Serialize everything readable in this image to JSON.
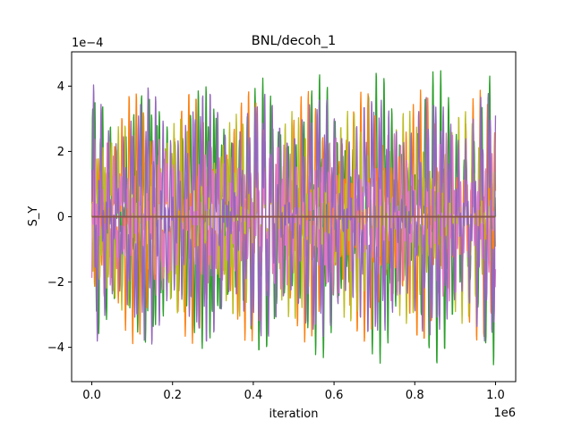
{
  "chart_data": {
    "type": "line",
    "title": "BNL/decoh_1",
    "xlabel": "iteration",
    "ylabel": "S_Y",
    "x_offset_label": "1e6",
    "y_offset_label": "1e−4",
    "xlim": [
      -0.05,
      1.05
    ],
    "ylim": [
      -5.05,
      5.05
    ],
    "x_ticks": [
      0.0,
      0.2,
      0.4,
      0.6,
      0.8,
      1.0
    ],
    "x_tick_labels": [
      "0.0",
      "0.2",
      "0.4",
      "0.6",
      "0.8",
      "1.0"
    ],
    "y_ticks": [
      -4,
      -2,
      0,
      2,
      4
    ],
    "y_tick_labels": [
      "−4",
      "−2",
      "0",
      "2",
      "4"
    ],
    "grid": false,
    "x_range": [
      0.0,
      1.0
    ],
    "series": [
      {
        "color": "#2ca02c",
        "amplitude": 4.6,
        "oscillations": 50
      },
      {
        "color": "#ff7f0e",
        "amplitude": 3.9,
        "oscillations": 54
      },
      {
        "color": "#bcbd22",
        "amplitude": 3.3,
        "oscillations": 58
      },
      {
        "color": "#e377c2",
        "amplitude": 2.6,
        "oscillations": 62
      },
      {
        "color": "#9467bd",
        "amplitude": 4.6,
        "oscillations": 52
      },
      {
        "color": "#8c564b",
        "amplitude": 0.02,
        "oscillations": 1
      }
    ]
  }
}
